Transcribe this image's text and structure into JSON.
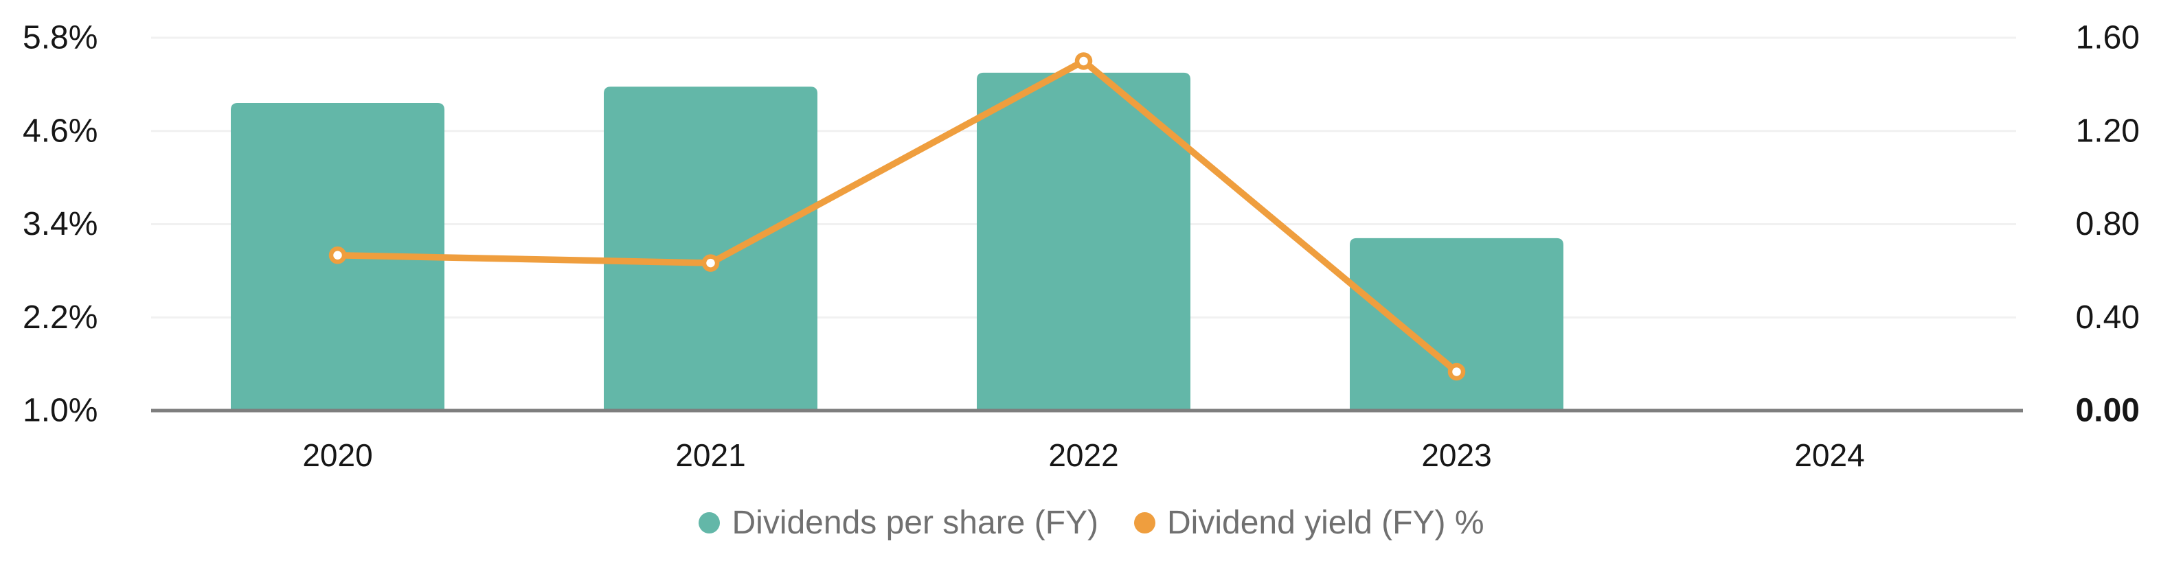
{
  "chart_data": {
    "type": "bar",
    "subtype": "combo_bar_line",
    "categories": [
      "2020",
      "2021",
      "2022",
      "2023",
      "2024"
    ],
    "series": [
      {
        "name": "Dividends per share (FY)",
        "type": "bar",
        "axis": "right",
        "color": "#63b7a8",
        "values": [
          1.32,
          1.39,
          1.45,
          0.74,
          null
        ]
      },
      {
        "name": "Dividend yield (FY) %",
        "type": "line",
        "axis": "left",
        "color": "#ef9e3e",
        "values": [
          3.0,
          2.9,
          5.5,
          1.5,
          null
        ]
      }
    ],
    "left_axis": {
      "unit": "%",
      "min": 1.0,
      "max": 5.8,
      "ticks": [
        "5.8%",
        "4.6%",
        "3.4%",
        "2.2%",
        "1.0%"
      ]
    },
    "right_axis": {
      "min": 0.0,
      "max": 1.6,
      "ticks": [
        "1.60",
        "1.20",
        "0.80",
        "0.40",
        "0.00"
      ],
      "bold_tick": "0.00"
    },
    "grid": true,
    "legend_position": "bottom"
  },
  "legend": {
    "items": [
      {
        "label": "Dividends per share (FY)",
        "color": "#63b7a8"
      },
      {
        "label": "Dividend yield (FY) %",
        "color": "#ef9e3e"
      }
    ]
  },
  "colors": {
    "bar": "#63b7a8",
    "line": "#ef9e3e",
    "marker_core": "#ffffff",
    "gridline": "#f1f1f1",
    "axis_line": "#7e7e7e",
    "tick_text": "#161616",
    "legend_text": "#707070",
    "background": "#ffffff"
  }
}
